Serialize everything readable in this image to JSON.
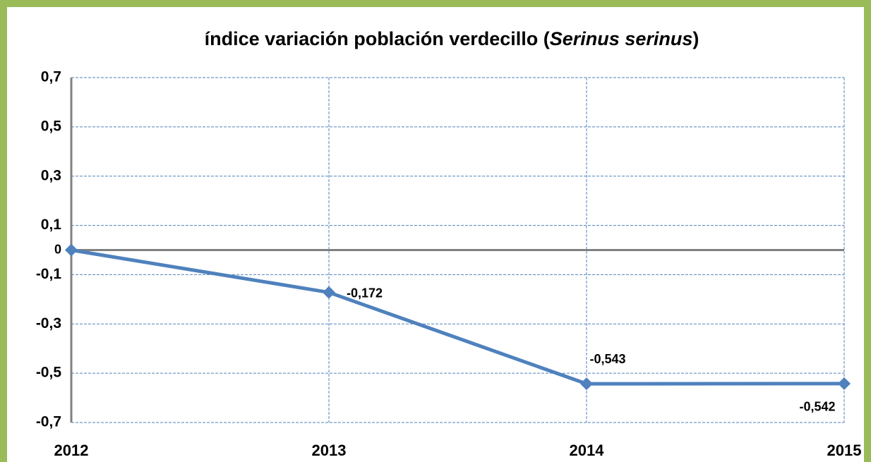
{
  "chart_data": {
    "type": "line",
    "title": [
      "índice variación  población verdecillo (",
      "Serinus serinus",
      ")"
    ],
    "x": [
      2012,
      2013,
      2014,
      2015
    ],
    "xlim": [
      2012,
      2015
    ],
    "xticks": [
      2012,
      2013,
      2014,
      2015
    ],
    "series": [
      {
        "color": "#4f81bd",
        "values": [
          0,
          -0.172,
          -0.543,
          -0.542
        ],
        "value_labels": [
          null,
          "-0,172",
          "-0,543",
          "-0,542"
        ]
      }
    ],
    "ylim": [
      -0.7,
      0.7
    ],
    "yticks": [
      {
        "value": 0.7,
        "label": "0,7"
      },
      {
        "value": 0.5,
        "label": "0,5"
      },
      {
        "value": 0.3,
        "label": "0,3"
      },
      {
        "value": 0.1,
        "label": "0,1"
      },
      0,
      {
        "value": -0.1,
        "label": "-0,1"
      },
      {
        "value": -0.3,
        "label": "-0,3"
      },
      {
        "value": -0.5,
        "label": "-0,5"
      },
      {
        "value": -0.7,
        "label": "-0,7"
      }
    ],
    "grid": true
  }
}
